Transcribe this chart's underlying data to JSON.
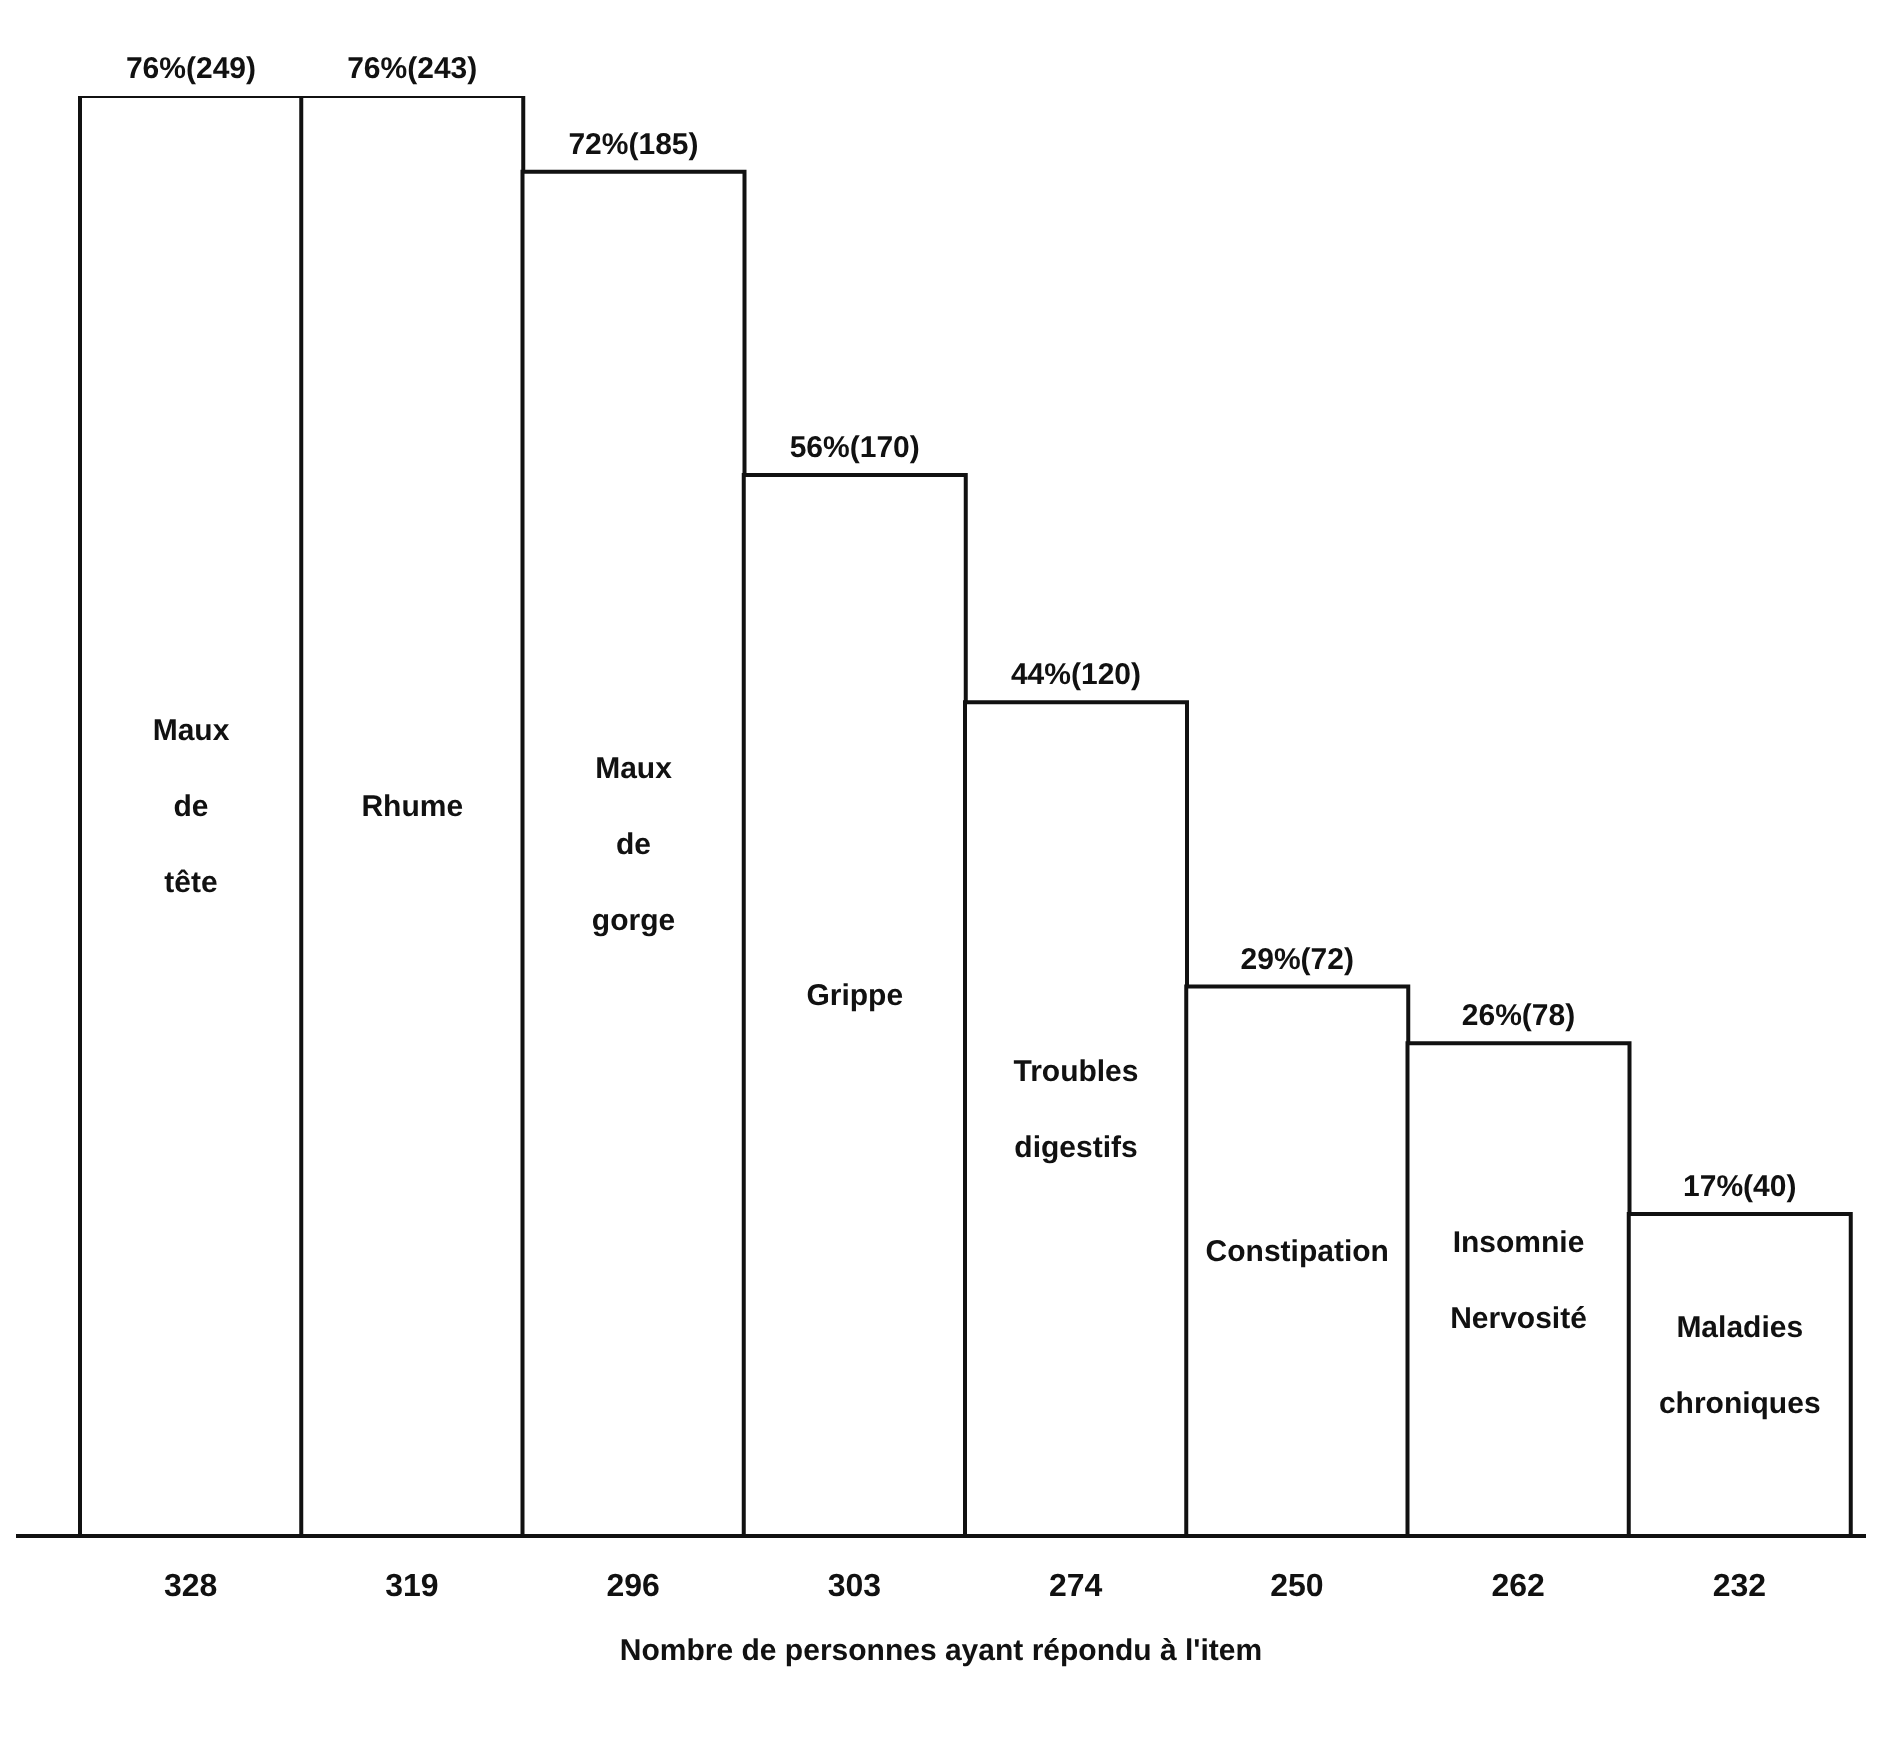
{
  "chart_data": {
    "type": "bar",
    "xlabel": "Nombre de personnes ayant répondu à l'item",
    "categories": [
      "Maux de tête",
      "Rhume",
      "Maux de gorge",
      "Grippe",
      "Troubles digestifs",
      "Constipation",
      "Insomnie Nervosité",
      "Maladies chroniques"
    ],
    "values": [
      76,
      76,
      72,
      56,
      44,
      29,
      26,
      17
    ],
    "value_labels": [
      "76%(249)",
      "76%(243)",
      "72%(185)",
      "56%(170)",
      "44%(120)",
      "29%(72)",
      "26%(78)",
      "17%(40)"
    ],
    "annotations": [
      "328",
      "319",
      "296",
      "303",
      "274",
      "250",
      "262",
      "232"
    ],
    "color": "#ffffff",
    "grid": false,
    "legend": false
  }
}
